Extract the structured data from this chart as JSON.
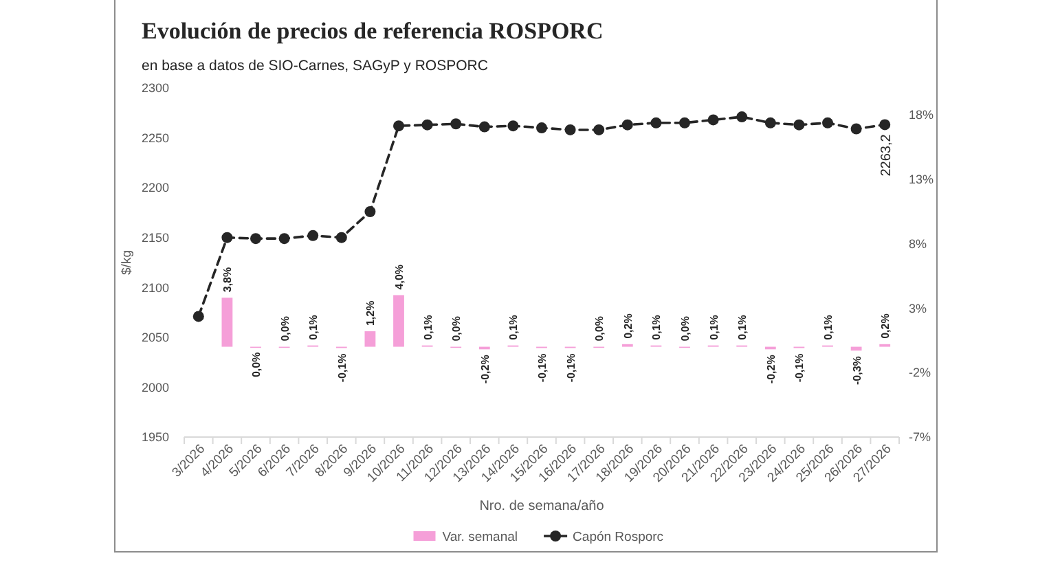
{
  "chart_data": {
    "type": "bar",
    "title": "Evolución de precios de referencia ROSPORC",
    "subtitle": "en base a datos de SIO-Carnes, SAGyP y ROSPORC",
    "xlabel": "Nro. de semana/año",
    "ylabel": "$/kg",
    "categories": [
      "3/2026",
      "4/2026",
      "5/2026",
      "6/2026",
      "7/2026",
      "8/2026",
      "9/2026",
      "10/2026",
      "11/2026",
      "12/2026",
      "13/2026",
      "14/2026",
      "15/2026",
      "16/2026",
      "17/2026",
      "18/2026",
      "19/2026",
      "20/2026",
      "21/2026",
      "22/2026",
      "23/2026",
      "24/2026",
      "25/2026",
      "26/2026",
      "27/2026"
    ],
    "series": [
      {
        "name": "Var. semanal",
        "axis": "y2",
        "color": "#f59fd8",
        "values": [
          null,
          3.8,
          -0.0,
          0.0,
          0.1,
          -0.1,
          1.2,
          4.0,
          0.1,
          0.0,
          -0.2,
          0.1,
          -0.1,
          -0.1,
          0.0,
          0.2,
          0.1,
          0.0,
          0.1,
          0.1,
          -0.2,
          -0.1,
          0.1,
          -0.3,
          0.2
        ],
        "value_labels": [
          null,
          "3,8%",
          "0,0%",
          "0,0%",
          "0,1%",
          "-0,1%",
          "1,2%",
          "4,0%",
          "0,1%",
          "0,0%",
          "-0,2%",
          "0,1%",
          "-0,1%",
          "-0,1%",
          "0,0%",
          "0,2%",
          "0,1%",
          "0,0%",
          "0,1%",
          "0,1%",
          "-0,2%",
          "-0,1%",
          "0,1%",
          "-0,3%",
          "0,2%"
        ]
      },
      {
        "name": "Capón Rosporc",
        "type": "line",
        "color": "#262626",
        "values": [
          2071,
          2150,
          2149,
          2149,
          2152,
          2150,
          2176,
          2262,
          2263,
          2264,
          2261,
          2262,
          2260,
          2258,
          2258,
          2263,
          2265,
          2265,
          2268,
          2271,
          2265,
          2263,
          2265,
          2259,
          2263.2
        ],
        "value_labels": [
          null,
          null,
          null,
          null,
          null,
          null,
          null,
          null,
          null,
          null,
          null,
          null,
          null,
          null,
          null,
          null,
          null,
          null,
          null,
          null,
          null,
          null,
          null,
          null,
          "2263,2"
        ]
      }
    ],
    "ylim": [
      1950,
      2300
    ],
    "yticks": [
      1950,
      2000,
      2050,
      2100,
      2150,
      2200,
      2250,
      2300
    ],
    "y2lim": [
      -7,
      18
    ],
    "y2ticks": [
      {
        "value": -7,
        "label": "-7%"
      },
      {
        "value": -2,
        "label": "-2%"
      },
      {
        "value": 3,
        "label": "3%"
      },
      {
        "value": 8,
        "label": "8%"
      },
      {
        "value": 13,
        "label": "13%"
      },
      {
        "value": 18,
        "label": "18%"
      }
    ],
    "legend": "bottom",
    "marker": "circle",
    "line_style": "dashed"
  }
}
